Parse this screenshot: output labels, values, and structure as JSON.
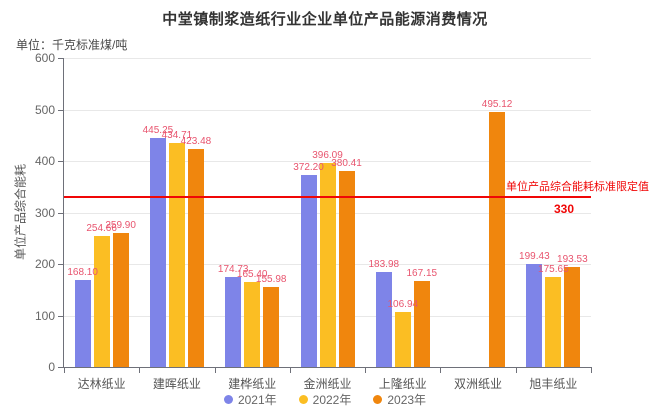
{
  "title": "中堂镇制浆造纸行业企业单位产品能源消费情况",
  "unit_label": "单位：千克标准煤/吨",
  "chart_data": {
    "type": "bar",
    "title": "中堂镇制浆造纸行业企业单位产品能源消费情况",
    "unit": "千克标准煤/吨",
    "categories": [
      "达林纸业",
      "建晖纸业",
      "建桦纸业",
      "金洲纸业",
      "上隆纸业",
      "双洲纸业",
      "旭丰纸业"
    ],
    "series": [
      {
        "name": "2021年",
        "color": "#7E84E8",
        "values": [
          168.1,
          445.25,
          174.73,
          372.2,
          183.98,
          null,
          199.43
        ],
        "labels": [
          "168.10",
          "445.25",
          "174.73",
          "372.20",
          "183.98",
          "",
          "199.43"
        ]
      },
      {
        "name": "2022年",
        "color": "#FBBE23",
        "values": [
          254.66,
          434.71,
          165.4,
          396.09,
          106.94,
          null,
          175.65
        ],
        "labels": [
          "254.66",
          "434.71",
          "165.40",
          "396.09",
          "106.94",
          "",
          "175.65"
        ]
      },
      {
        "name": "2023年",
        "color": "#F0860D",
        "values": [
          259.9,
          423.48,
          155.98,
          380.41,
          167.15,
          495.12,
          193.53
        ],
        "labels": [
          "259.90",
          "423.48",
          "155.98",
          "380.41",
          "167.15",
          "495.12",
          "193.53"
        ]
      }
    ],
    "xlabel": "",
    "ylabel": "单位产品综合能耗",
    "ylim": [
      0,
      600
    ],
    "ytick_step": 100,
    "grid": true,
    "legend_position": "bottom",
    "value_label_color": "#E8546E",
    "marker_line": {
      "value": 330,
      "label": "单位产品综合能耗标准限定值",
      "value_label": "330",
      "color": "#F00606"
    }
  }
}
